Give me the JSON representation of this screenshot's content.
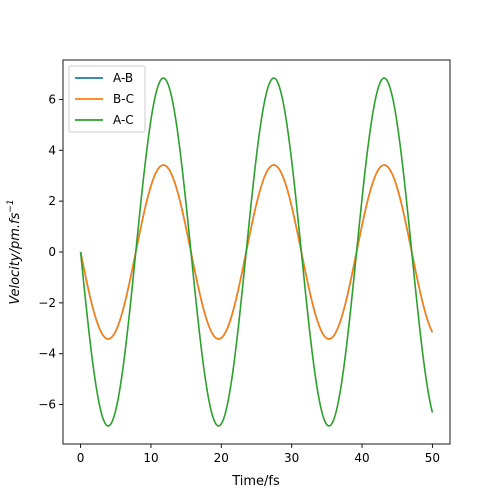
{
  "chart_data": {
    "type": "line",
    "title": "",
    "xlabel": "Time/fs",
    "ylabel_main": "Velocity/pm.fs",
    "ylabel_sup": "−1",
    "xlim": [
      -2.5,
      52.5
    ],
    "ylim": [
      -7.55,
      7.55
    ],
    "xticks": [
      0,
      10,
      20,
      30,
      40,
      50
    ],
    "xtick_labels": [
      "0",
      "10",
      "20",
      "30",
      "40",
      "50"
    ],
    "yticks": [
      -6,
      -4,
      -2,
      0,
      2,
      4,
      6
    ],
    "ytick_labels": [
      "−6",
      "−4",
      "−2",
      "0",
      "2",
      "4",
      "6"
    ],
    "grid": false,
    "legend_position": "upper-left",
    "x": [
      0,
      1,
      2,
      3,
      4,
      5,
      6,
      7,
      8,
      9,
      10,
      11,
      12,
      13,
      14,
      15,
      16,
      17,
      18,
      19,
      20,
      21,
      22,
      23,
      24,
      25,
      26,
      27,
      28,
      29,
      30,
      31,
      32,
      33,
      34,
      35,
      36,
      37,
      38,
      39,
      40,
      41,
      42,
      43,
      44,
      45,
      46,
      47,
      48,
      49,
      50
    ],
    "series": [
      {
        "name": "A-B",
        "color": "#1f77b4",
        "values": [
          0.0,
          -1.34,
          -2.47,
          -3.19,
          -3.42,
          -3.12,
          -2.34,
          -1.2,
          0.15,
          1.47,
          2.57,
          3.25,
          3.42,
          3.05,
          2.21,
          1.05,
          -0.3,
          -1.6,
          -2.66,
          -3.3,
          -3.41,
          -2.99,
          -2.09,
          -0.9,
          0.45,
          1.73,
          2.76,
          3.34,
          3.4,
          2.91,
          1.96,
          0.75,
          -0.6,
          -1.86,
          -2.85,
          -3.38,
          -3.38,
          -2.83,
          -1.83,
          -0.59,
          0.75,
          1.98,
          2.93,
          3.41,
          3.35,
          2.75,
          1.68,
          0.44,
          -0.89,
          -2.1,
          -3.1
        ]
      },
      {
        "name": "B-C",
        "color": "#ff7f0e",
        "values": [
          0.0,
          -1.34,
          -2.47,
          -3.19,
          -3.42,
          -3.12,
          -2.34,
          -1.2,
          0.15,
          1.47,
          2.57,
          3.25,
          3.42,
          3.05,
          2.21,
          1.05,
          -0.3,
          -1.6,
          -2.66,
          -3.3,
          -3.41,
          -2.99,
          -2.09,
          -0.9,
          0.45,
          1.73,
          2.76,
          3.34,
          3.4,
          2.91,
          1.96,
          0.75,
          -0.6,
          -1.86,
          -2.85,
          -3.38,
          -3.38,
          -2.83,
          -1.83,
          -0.59,
          0.75,
          1.98,
          2.93,
          3.41,
          3.35,
          2.75,
          1.68,
          0.44,
          -0.89,
          -2.1,
          -3.1
        ]
      },
      {
        "name": "A-C",
        "color": "#2ca02c",
        "values": [
          0.0,
          -2.68,
          -4.94,
          -6.38,
          -6.84,
          -6.24,
          -4.68,
          -2.4,
          0.3,
          2.94,
          5.14,
          6.5,
          6.84,
          6.1,
          4.42,
          2.1,
          -0.6,
          -3.2,
          -5.32,
          -6.6,
          -6.82,
          -5.98,
          -4.18,
          -1.8,
          0.9,
          3.46,
          5.52,
          6.68,
          6.8,
          5.82,
          3.92,
          1.5,
          -1.2,
          -3.72,
          -5.7,
          -6.76,
          -6.76,
          -5.66,
          -3.66,
          -1.18,
          1.5,
          3.96,
          5.86,
          6.82,
          6.7,
          5.5,
          3.36,
          0.88,
          -1.78,
          -4.2,
          -6.2
        ]
      }
    ]
  }
}
